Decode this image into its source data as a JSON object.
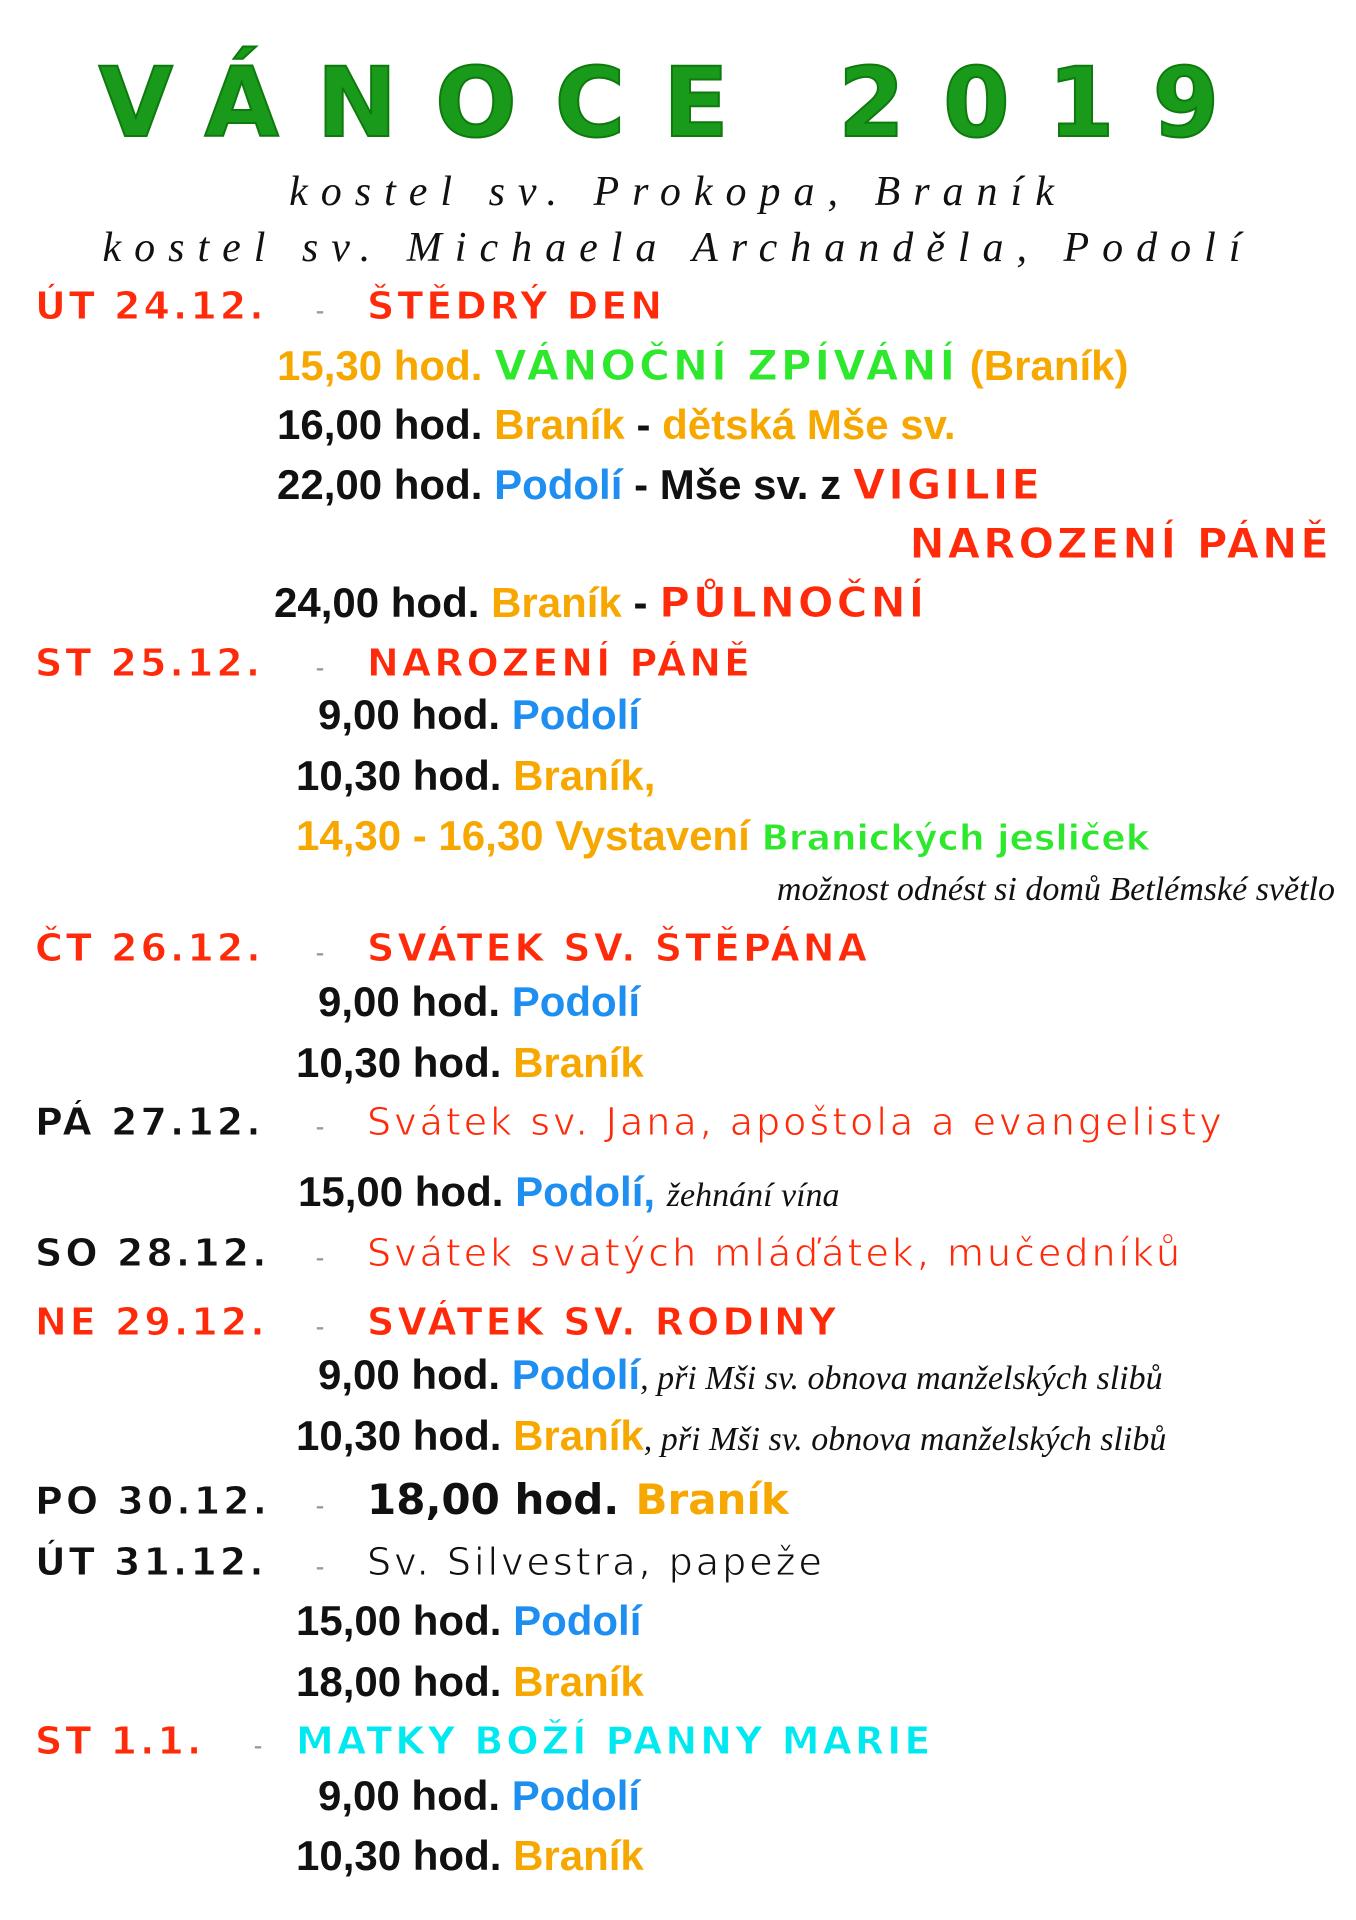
{
  "title": "VÁNOCE 2019",
  "subtitle1": "kostel sv. Prokopa, Braník",
  "subtitle2": "kostel sv. Michaela Archanděla, Podolí",
  "separator": "-",
  "colors": {
    "red": "#ff2a0a",
    "orange": "#f7a800",
    "blue": "#1e8ff0",
    "green": "#2ee82e",
    "cyan": "#00e8f0",
    "title_green": "#1a9a1a"
  },
  "days": [
    {
      "date": "ÚT 24.12.",
      "title": "ŠTĚDRÝ DEN",
      "items": [
        {
          "time": "15,30 hod.",
          "a": "VÁNOČNÍ  ZPÍVÁNÍ",
          "b": " (Braník)"
        },
        {
          "time": "16,00 hod.",
          "a": "Braník",
          "b": " - ",
          "c": "dětská Mše sv."
        },
        {
          "time": "22,00 hod.",
          "a": "Podolí",
          "b": " - Mše sv. z ",
          "c": "VIGILIE",
          "d": "NAROZENÍ PÁNĚ"
        },
        {
          "time": "24,00 hod.",
          "a": "Braník",
          "b": " - ",
          "c": "PŮLNOČNÍ"
        }
      ]
    },
    {
      "date": "ST 25.12.",
      "title": "NAROZENÍ PÁNĚ",
      "items": [
        {
          "time": "9,00 hod.",
          "a": "Podolí"
        },
        {
          "time": "10,30 hod.",
          "a": "Braník,"
        },
        {
          "time": "14,30 - 16,30 Vystavení",
          "a": "Branických jesliček"
        },
        {
          "note": "možnost odnést si domů Betlémské světlo"
        }
      ]
    },
    {
      "date": "ČT 26.12.",
      "title": "SVÁTEK SV. ŠTĚPÁNA",
      "items": [
        {
          "time": "9,00 hod.",
          "a": "Podolí"
        },
        {
          "time": "10,30 hod.",
          "a": "Braník"
        }
      ]
    },
    {
      "date": "PÁ 27.12.",
      "title": "Svátek sv. Jana, apoštola a evangelisty",
      "items": [
        {
          "time": "15,00 hod.",
          "a": "Podolí,",
          "note": "žehnání vína"
        }
      ]
    },
    {
      "date": "SO 28.12.",
      "title": "Svátek svatých mláďátek, mučedníků"
    },
    {
      "date": "NE 29.12.",
      "title": "SVÁTEK SV. RODINY",
      "items": [
        {
          "time": "9,00 hod.",
          "a": "Podolí",
          "note": ", při Mši sv. obnova manželských slibů"
        },
        {
          "time": "10,30 hod.",
          "a": "Braník",
          "note": ", při Mši sv. obnova manželských slibů"
        }
      ]
    },
    {
      "date": "PO 30.12.",
      "time": "18,00 hod.",
      "a": "Braník"
    },
    {
      "date": "ÚT 31.12.",
      "title": "Sv. Silvestra, papeže",
      "items": [
        {
          "time": "15,00 hod.",
          "a": "Podolí"
        },
        {
          "time": "18,00 hod.",
          "a": "Braník"
        }
      ]
    },
    {
      "date": "ST 1.1.",
      "title": "MATKY BOŽÍ PANNY MARIE",
      "items": [
        {
          "time": "9,00 hod.",
          "a": "Podolí"
        },
        {
          "time": "10,30 hod.",
          "a": "Braník"
        }
      ]
    }
  ]
}
